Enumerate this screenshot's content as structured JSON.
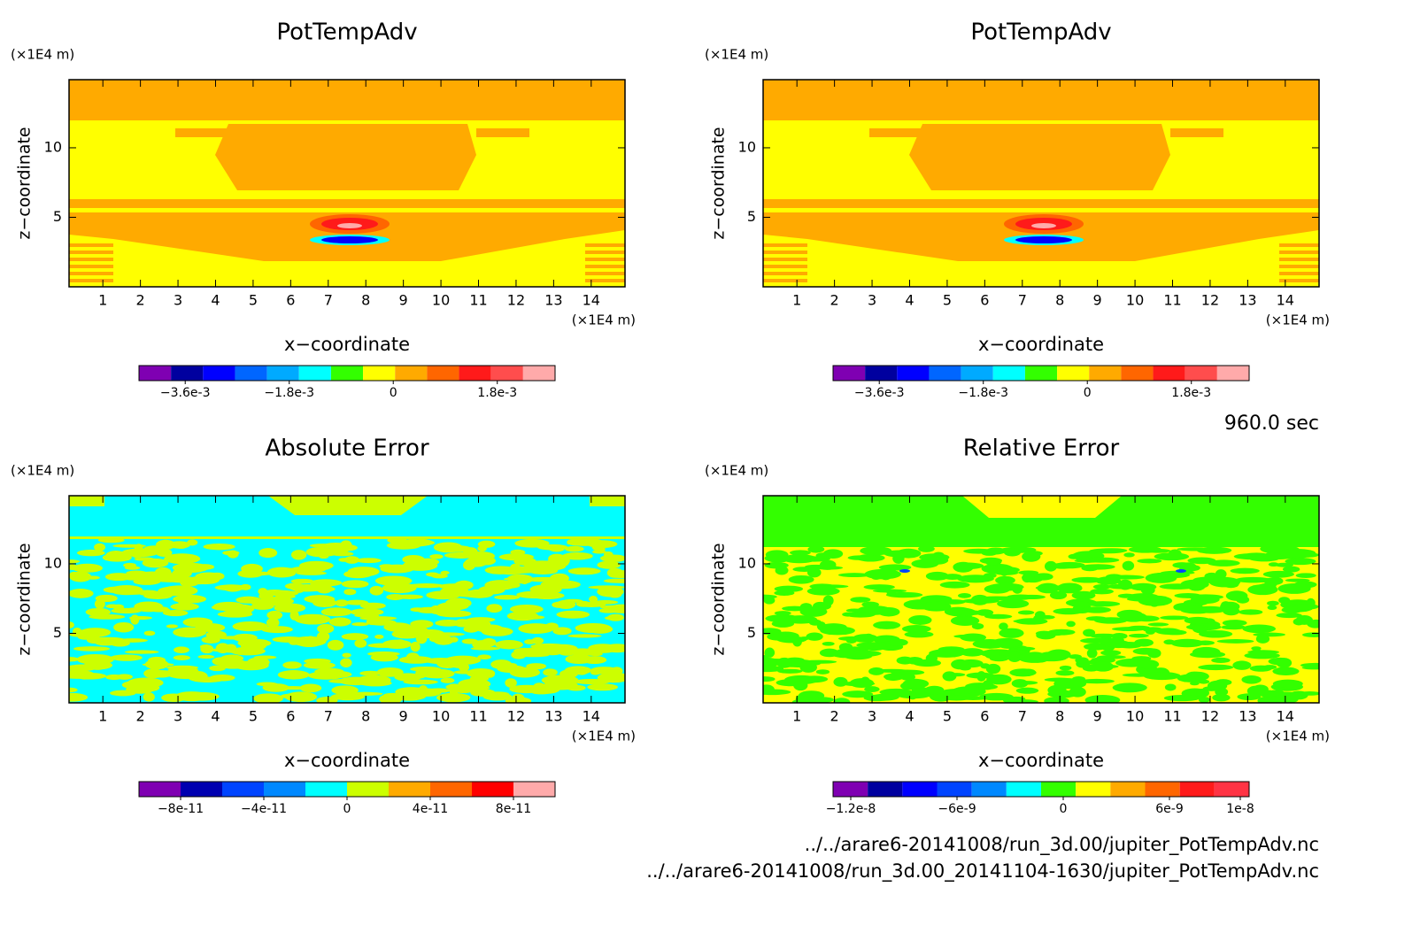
{
  "chart_data": [
    {
      "type": "contour",
      "title": "PotTempAdv",
      "xlabel": "x−coordinate",
      "ylabel": "z−coordinate",
      "x_unit": "(×1E4 m)",
      "y_unit": "(×1E4 m)",
      "xlim": [
        0.1,
        14.9
      ],
      "ylim": [
        0,
        14.9
      ],
      "xticks": [
        1,
        2,
        3,
        4,
        5,
        6,
        7,
        8,
        9,
        10,
        11,
        12,
        13,
        14
      ],
      "yticks": [
        5,
        10
      ],
      "colorbar": {
        "lim": [
          -0.0044,
          0.0028
        ],
        "ticks": [
          {
            "value": -0.0036,
            "label": "−3.6e-3"
          },
          {
            "value": -0.0018,
            "label": "−1.8e-3"
          },
          0,
          {
            "value": 0.0018,
            "label": "1.8e-3"
          }
        ],
        "colors": [
          "#7f00b2",
          "#00009f",
          "#0000ff",
          "#0066ff",
          "#00aaff",
          "#00ffff",
          "#33ff00",
          "#ffff00",
          "#ffaa00",
          "#ff6600",
          "#ff1a1a",
          "#ff4d4d",
          "#ffaaaa"
        ]
      }
    },
    {
      "type": "contour",
      "title": "PotTempAdv",
      "xlabel": "x−coordinate",
      "ylabel": "z−coordinate",
      "x_unit": "(×1E4 m)",
      "y_unit": "(×1E4 m)",
      "xlim": [
        0.1,
        14.9
      ],
      "ylim": [
        0,
        14.9
      ],
      "xticks": [
        1,
        2,
        3,
        4,
        5,
        6,
        7,
        8,
        9,
        10,
        11,
        12,
        13,
        14
      ],
      "yticks": [
        5,
        10
      ],
      "colorbar": {
        "lim": [
          -0.0044,
          0.0028
        ],
        "ticks": [
          {
            "value": -0.0036,
            "label": "−3.6e-3"
          },
          {
            "value": -0.0018,
            "label": "−1.8e-3"
          },
          0,
          {
            "value": 0.0018,
            "label": "1.8e-3"
          }
        ],
        "colors": [
          "#7f00b2",
          "#00009f",
          "#0000ff",
          "#0066ff",
          "#00aaff",
          "#00ffff",
          "#33ff00",
          "#ffff00",
          "#ffaa00",
          "#ff6600",
          "#ff1a1a",
          "#ff4d4d",
          "#ffaaaa"
        ]
      }
    },
    {
      "type": "contour",
      "title": "Absolute Error",
      "xlabel": "x−coordinate",
      "ylabel": "z−coordinate",
      "x_unit": "(×1E4 m)",
      "y_unit": "(×1E4 m)",
      "xlim": [
        0.1,
        14.9
      ],
      "ylim": [
        0,
        14.9
      ],
      "xticks": [
        1,
        2,
        3,
        4,
        5,
        6,
        7,
        8,
        9,
        10,
        11,
        12,
        13,
        14
      ],
      "yticks": [
        5,
        10
      ],
      "colorbar": {
        "lim": [
          -1e-10,
          1e-10
        ],
        "ticks": [
          {
            "value": -8e-11,
            "label": "−8e-11"
          },
          {
            "value": -4e-11,
            "label": "−4e-11"
          },
          0,
          {
            "value": 4e-11,
            "label": "4e-11"
          },
          {
            "value": 8e-11,
            "label": "8e-11"
          }
        ],
        "colors": [
          "#7f00b2",
          "#0000b0",
          "#0044ff",
          "#0088ff",
          "#00ffff",
          "#ccff00",
          "#ffaa00",
          "#ff6600",
          "#ff0000",
          "#ffaaaa"
        ]
      }
    },
    {
      "type": "contour",
      "title": "Relative Error",
      "xlabel": "x−coordinate",
      "ylabel": "z−coordinate",
      "x_unit": "(×1E4 m)",
      "y_unit": "(×1E4 m)",
      "xlim": [
        0.1,
        14.9
      ],
      "ylim": [
        0,
        14.9
      ],
      "xticks": [
        1,
        2,
        3,
        4,
        5,
        6,
        7,
        8,
        9,
        10,
        11,
        12,
        13,
        14
      ],
      "yticks": [
        5,
        10
      ],
      "colorbar": {
        "lim": [
          -1.3e-08,
          1.05e-08
        ],
        "ticks": [
          {
            "value": -1.2e-08,
            "label": "−1.2e-8"
          },
          {
            "value": -6e-09,
            "label": "−6e-9"
          },
          0,
          {
            "value": 6e-09,
            "label": "6e-9"
          },
          {
            "value": 1e-08,
            "label": "1e-8"
          }
        ],
        "colors": [
          "#7f00b2",
          "#00009f",
          "#0000ff",
          "#0044ff",
          "#0088ff",
          "#00ffff",
          "#33ff00",
          "#ffff00",
          "#ffaa00",
          "#ff6600",
          "#ff1a1a",
          "#ff3344"
        ]
      }
    }
  ],
  "annotations": {
    "time": "960.0 sec",
    "files": [
      "../../arare6-20141008/run_3d.00/jupiter_PotTempAdv.nc",
      "../../arare6-20141008/run_3d.00_20141104-1630/jupiter_PotTempAdv.nc"
    ]
  }
}
